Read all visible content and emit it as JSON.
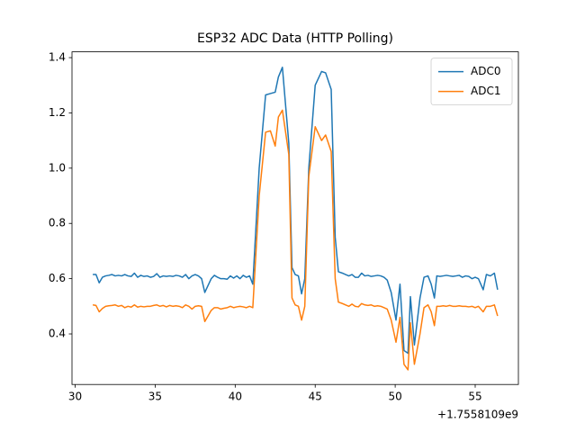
{
  "chart_data": {
    "type": "line",
    "title": "ESP32 ADC Data (HTTP Polling)",
    "x_offset_label": "+1.7558109e9",
    "x": [
      31.1,
      31.3,
      31.5,
      31.7,
      31.9,
      32.1,
      32.3,
      32.5,
      32.7,
      32.9,
      33.1,
      33.3,
      33.5,
      33.7,
      33.9,
      34.1,
      34.3,
      34.5,
      34.7,
      34.9,
      35.1,
      35.3,
      35.5,
      35.7,
      35.9,
      36.1,
      36.3,
      36.5,
      36.7,
      36.9,
      37.1,
      37.3,
      37.5,
      37.7,
      37.9,
      38.1,
      38.3,
      38.5,
      38.7,
      38.9,
      39.1,
      39.3,
      39.5,
      39.7,
      39.9,
      40.1,
      40.3,
      40.5,
      40.7,
      40.9,
      41.1,
      41.5,
      41.9,
      42.2,
      42.5,
      42.7,
      42.95,
      43.35,
      43.55,
      43.75,
      43.95,
      44.15,
      44.35,
      44.6,
      45.0,
      45.4,
      45.65,
      46.0,
      46.25,
      46.45,
      46.7,
      46.9,
      47.1,
      47.3,
      47.5,
      47.7,
      47.9,
      48.1,
      48.3,
      48.5,
      48.7,
      48.9,
      49.1,
      49.3,
      49.5,
      49.75,
      50.05,
      50.3,
      50.55,
      50.8,
      50.95,
      51.2,
      51.55,
      51.8,
      52.05,
      52.25,
      52.45,
      52.6,
      52.8,
      53.0,
      53.2,
      53.4,
      53.6,
      53.8,
      54.0,
      54.2,
      54.4,
      54.6,
      54.8,
      55.0,
      55.2,
      55.5,
      55.7,
      55.95,
      56.2,
      56.4
    ],
    "series": [
      {
        "name": "ADC0",
        "color": "#1f77b4",
        "values": [
          0.615,
          0.615,
          0.585,
          0.605,
          0.61,
          0.612,
          0.615,
          0.61,
          0.612,
          0.61,
          0.615,
          0.61,
          0.608,
          0.62,
          0.605,
          0.612,
          0.608,
          0.61,
          0.605,
          0.608,
          0.618,
          0.605,
          0.61,
          0.608,
          0.61,
          0.608,
          0.612,
          0.61,
          0.605,
          0.615,
          0.6,
          0.61,
          0.615,
          0.61,
          0.6,
          0.55,
          0.575,
          0.6,
          0.612,
          0.605,
          0.6,
          0.6,
          0.598,
          0.61,
          0.602,
          0.61,
          0.6,
          0.612,
          0.605,
          0.61,
          0.58,
          1.0,
          1.265,
          1.27,
          1.275,
          1.33,
          1.365,
          1.09,
          0.64,
          0.615,
          0.61,
          0.545,
          0.6,
          1.0,
          1.3,
          1.35,
          1.345,
          1.285,
          0.75,
          0.625,
          0.62,
          0.615,
          0.61,
          0.615,
          0.605,
          0.605,
          0.62,
          0.61,
          0.612,
          0.608,
          0.61,
          0.612,
          0.61,
          0.605,
          0.595,
          0.55,
          0.45,
          0.58,
          0.34,
          0.33,
          0.535,
          0.36,
          0.53,
          0.605,
          0.61,
          0.58,
          0.53,
          0.61,
          0.608,
          0.61,
          0.612,
          0.61,
          0.608,
          0.61,
          0.612,
          0.605,
          0.61,
          0.608,
          0.6,
          0.605,
          0.6,
          0.56,
          0.615,
          0.61,
          0.62,
          0.56
        ]
      },
      {
        "name": "ADC1",
        "color": "#ff7f0e",
        "values": [
          0.505,
          0.503,
          0.48,
          0.492,
          0.5,
          0.502,
          0.503,
          0.505,
          0.5,
          0.503,
          0.495,
          0.5,
          0.497,
          0.505,
          0.497,
          0.5,
          0.498,
          0.5,
          0.5,
          0.503,
          0.505,
          0.5,
          0.503,
          0.498,
          0.503,
          0.5,
          0.502,
          0.5,
          0.495,
          0.505,
          0.5,
          0.49,
          0.5,
          0.502,
          0.5,
          0.445,
          0.465,
          0.485,
          0.495,
          0.495,
          0.49,
          0.493,
          0.495,
          0.5,
          0.495,
          0.498,
          0.5,
          0.498,
          0.495,
          0.5,
          0.495,
          0.9,
          1.13,
          1.135,
          1.08,
          1.185,
          1.21,
          1.05,
          0.53,
          0.505,
          0.5,
          0.45,
          0.5,
          0.97,
          1.15,
          1.1,
          1.12,
          1.06,
          0.6,
          0.515,
          0.51,
          0.505,
          0.5,
          0.508,
          0.5,
          0.498,
          0.51,
          0.505,
          0.503,
          0.505,
          0.5,
          0.502,
          0.5,
          0.495,
          0.49,
          0.45,
          0.37,
          0.46,
          0.29,
          0.27,
          0.44,
          0.29,
          0.4,
          0.495,
          0.505,
          0.48,
          0.43,
          0.5,
          0.5,
          0.502,
          0.5,
          0.503,
          0.5,
          0.5,
          0.502,
          0.5,
          0.5,
          0.498,
          0.5,
          0.495,
          0.5,
          0.48,
          0.5,
          0.5,
          0.505,
          0.465
        ]
      }
    ],
    "xlim": [
      29.8,
      57.7
    ],
    "xticks": [
      30,
      35,
      40,
      45,
      50,
      55
    ],
    "ylim": [
      0.217,
      1.421
    ],
    "yticks": [
      0.4,
      0.6,
      0.8,
      {
        "value": 1,
        "label": "1.0"
      },
      1.2,
      1.4
    ],
    "grid": false,
    "legend": "upper right"
  }
}
